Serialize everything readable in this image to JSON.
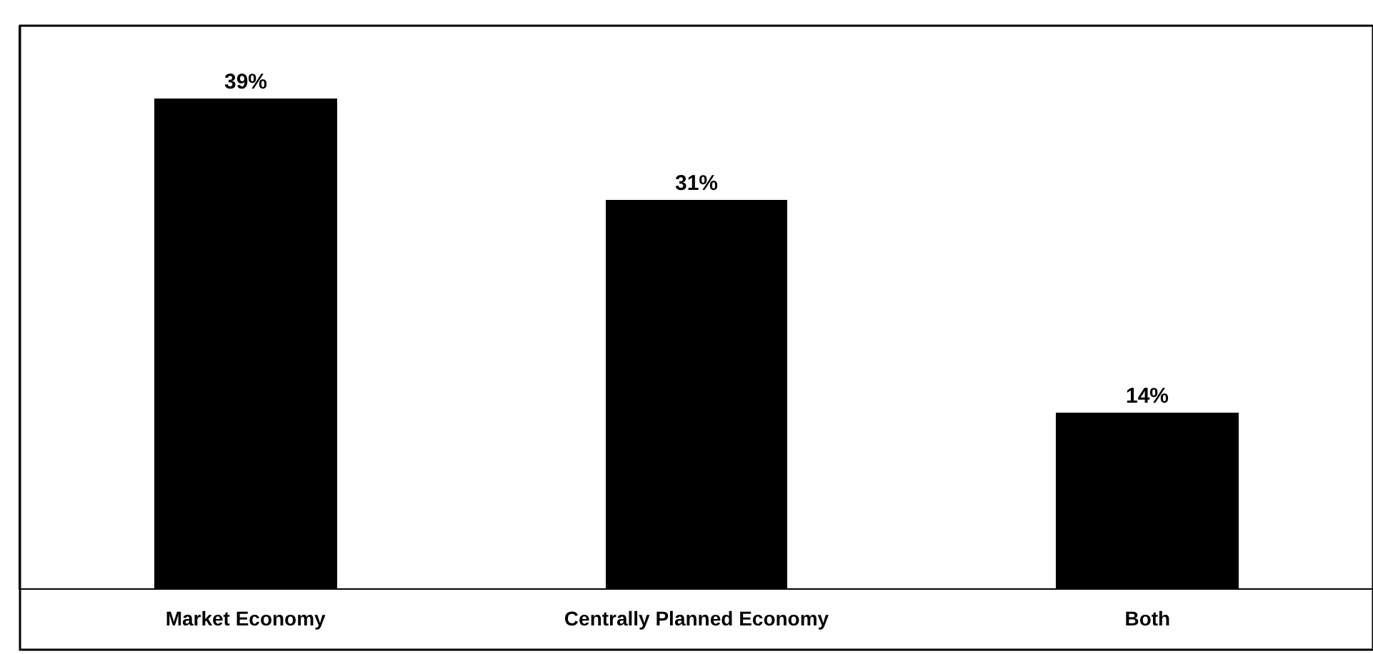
{
  "chart_data": {
    "type": "bar",
    "categories": [
      "Market Economy",
      "Centrally Planned Economy",
      "Both"
    ],
    "values": [
      39,
      31,
      14
    ],
    "value_labels": [
      "39%",
      "31%",
      "14%"
    ],
    "color": "#000000"
  }
}
